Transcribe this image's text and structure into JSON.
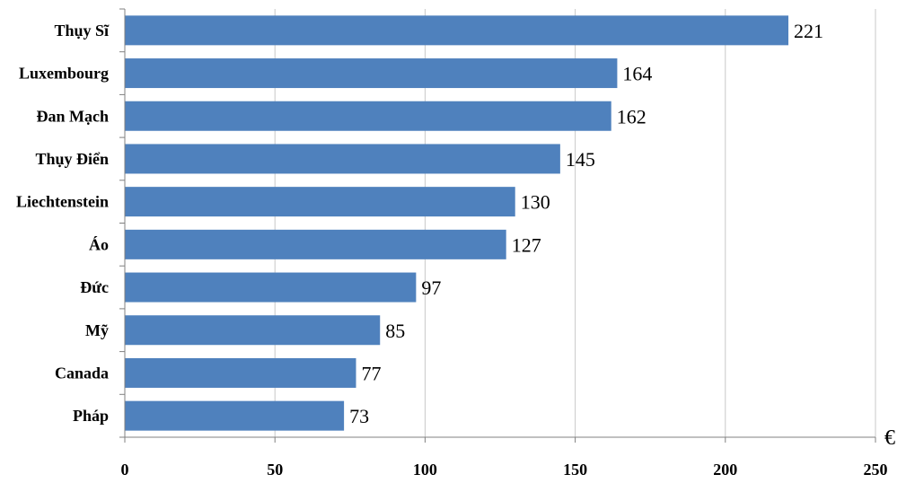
{
  "chart_data": {
    "type": "bar",
    "orientation": "horizontal",
    "categories": [
      "Thụy Sĩ",
      "Luxembourg",
      "Đan Mạch",
      "Thụy Điển",
      "Liechtenstein",
      "Áo",
      "Đức",
      "Mỹ",
      "Canada",
      "Pháp"
    ],
    "values": [
      221,
      164,
      162,
      145,
      130,
      127,
      97,
      85,
      77,
      73
    ],
    "data_labels": [
      "221",
      "164",
      "162",
      "145",
      "130",
      "127",
      "97",
      "85",
      "77",
      "73"
    ],
    "xlim": [
      0,
      250
    ],
    "x_ticks": [
      0,
      50,
      100,
      150,
      200,
      250
    ],
    "x_tick_labels": [
      "0",
      "50",
      "100",
      "150",
      "200",
      "250"
    ],
    "x_unit": "€",
    "bar_color": "#4f81bd",
    "grid": "vertical",
    "legend": "none"
  }
}
